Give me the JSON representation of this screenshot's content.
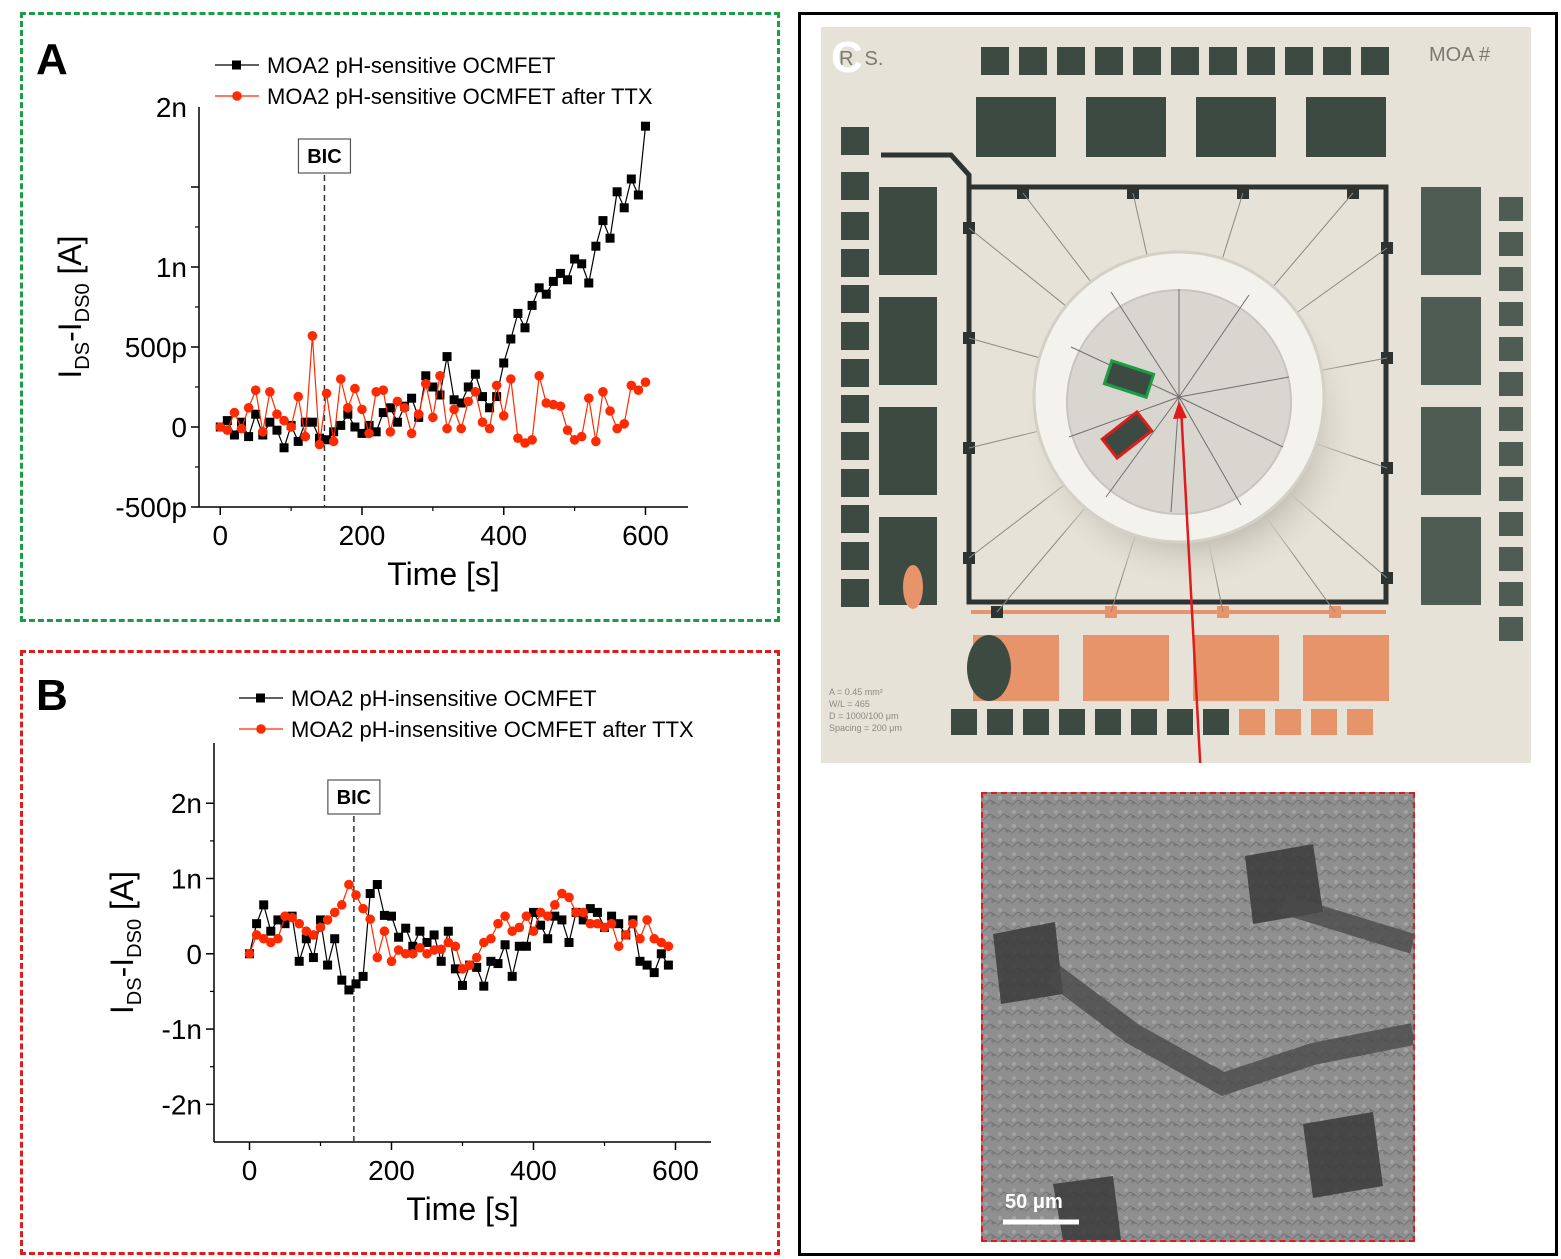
{
  "panels": {
    "A": {
      "letter": "A"
    },
    "B": {
      "letter": "B"
    },
    "C": {
      "letter": "C"
    }
  },
  "colors": {
    "series_black": "#000000",
    "series_red": "#ff2a00",
    "panelA_border": "#1a9e45",
    "panelB_border": "#e01b1b",
    "chip_bg": "#e6e2d8",
    "electrode_dark": "#3d4a42",
    "electrode_orange": "#e8946a"
  },
  "chart_data": [
    {
      "type": "line",
      "panel": "A",
      "xlabel": "Time [s]",
      "ylabel_main": "I",
      "ylabel_sub1": "DS",
      "ylabel_mid": "-I",
      "ylabel_sub2": "DS0",
      "ylabel_tail": " [A]",
      "xlim": [
        -30,
        660
      ],
      "ylim": [
        -500,
        2000
      ],
      "xticks": [
        0,
        200,
        400,
        600
      ],
      "xtick_labels": [
        "0",
        "200",
        "400",
        "600"
      ],
      "yticks": [
        -500,
        0,
        500,
        1000,
        1500
      ],
      "ytick_labels": [
        "-500p",
        "0",
        "500p",
        "1n",
        ""
      ],
      "ytop_label": "2n",
      "grid": false,
      "legend_position": "top",
      "annotation": {
        "label": "BIC",
        "x": 147
      },
      "series": [
        {
          "name": "MOA2 pH-sensitive OCMFET",
          "color": "#000000",
          "marker": "square",
          "x": [
            0,
            10,
            20,
            30,
            40,
            50,
            60,
            70,
            80,
            90,
            100,
            110,
            120,
            130,
            140,
            150,
            160,
            170,
            180,
            190,
            200,
            210,
            220,
            230,
            240,
            250,
            260,
            270,
            280,
            290,
            300,
            310,
            320,
            330,
            340,
            350,
            360,
            370,
            380,
            390,
            400,
            410,
            420,
            430,
            440,
            450,
            460,
            470,
            480,
            490,
            500,
            510,
            520,
            530,
            540,
            550,
            560,
            570,
            580,
            590,
            600
          ],
          "y": [
            0,
            40,
            -50,
            30,
            -60,
            80,
            -50,
            30,
            -20,
            -130,
            10,
            -90,
            30,
            30,
            -70,
            -80,
            -30,
            10,
            80,
            0,
            -40,
            10,
            -30,
            90,
            120,
            30,
            130,
            180,
            60,
            320,
            250,
            200,
            440,
            170,
            150,
            250,
            330,
            190,
            120,
            190,
            400,
            550,
            710,
            620,
            760,
            870,
            830,
            910,
            960,
            920,
            1050,
            1020,
            900,
            1130,
            1290,
            1180,
            1470,
            1370,
            1550,
            1450,
            1880
          ]
        },
        {
          "name": "MOA2 pH-sensitive OCMFET after TTX",
          "color": "#ff2a00",
          "marker": "circle",
          "x": [
            0,
            10,
            20,
            30,
            40,
            50,
            60,
            70,
            80,
            90,
            100,
            110,
            120,
            130,
            140,
            150,
            160,
            170,
            180,
            190,
            200,
            210,
            220,
            230,
            240,
            250,
            260,
            270,
            280,
            290,
            300,
            310,
            320,
            330,
            340,
            350,
            360,
            370,
            380,
            390,
            400,
            410,
            420,
            430,
            440,
            450,
            460,
            470,
            480,
            490,
            500,
            510,
            520,
            530,
            540,
            550,
            560,
            570,
            580,
            590,
            600
          ],
          "y": [
            0,
            -20,
            90,
            -10,
            120,
            230,
            -30,
            220,
            80,
            40,
            0,
            190,
            -60,
            570,
            -110,
            210,
            -90,
            300,
            120,
            240,
            110,
            -40,
            220,
            230,
            -30,
            160,
            120,
            -40,
            80,
            270,
            60,
            320,
            -10,
            110,
            -10,
            160,
            220,
            30,
            -10,
            260,
            70,
            300,
            -70,
            -100,
            -80,
            320,
            150,
            140,
            130,
            -20,
            -80,
            -60,
            180,
            -90,
            220,
            100,
            -10,
            20,
            260,
            230,
            280
          ]
        }
      ]
    },
    {
      "type": "line",
      "panel": "B",
      "xlabel": "Time [s]",
      "ylabel_main": "I",
      "ylabel_sub1": "DS",
      "ylabel_mid": "-I",
      "ylabel_sub2": "DS0",
      "ylabel_tail": " [A]",
      "xlim": [
        -50,
        650
      ],
      "ylim": [
        -2500,
        2800
      ],
      "xticks": [
        0,
        200,
        400,
        600
      ],
      "xtick_labels": [
        "0",
        "200",
        "400",
        "600"
      ],
      "yticks": [
        -2000,
        -1000,
        0,
        1000,
        2000
      ],
      "ytick_labels": [
        "-2n",
        "-1n",
        "0",
        "1n",
        "2n"
      ],
      "grid": false,
      "legend_position": "top",
      "annotation": {
        "label": "BIC",
        "x": 147
      },
      "series": [
        {
          "name": "MOA2 pH-insensitive OCMFET",
          "color": "#000000",
          "marker": "square",
          "x": [
            0,
            10,
            20,
            30,
            40,
            50,
            60,
            70,
            80,
            90,
            100,
            110,
            120,
            130,
            140,
            150,
            160,
            170,
            180,
            190,
            200,
            210,
            220,
            230,
            240,
            250,
            260,
            270,
            280,
            290,
            300,
            310,
            320,
            330,
            340,
            350,
            360,
            370,
            380,
            390,
            400,
            410,
            420,
            430,
            440,
            450,
            460,
            470,
            480,
            490,
            500,
            510,
            520,
            530,
            540,
            550,
            560,
            570,
            580,
            590
          ],
          "y": [
            0,
            400,
            650,
            300,
            450,
            400,
            500,
            -100,
            200,
            -50,
            450,
            -150,
            200,
            -350,
            -480,
            -400,
            -300,
            800,
            920,
            510,
            500,
            220,
            340,
            100,
            300,
            150,
            250,
            -100,
            300,
            -200,
            -420,
            -150,
            -180,
            -430,
            -100,
            -130,
            120,
            -300,
            100,
            100,
            550,
            380,
            200,
            500,
            450,
            150,
            550,
            450,
            600,
            550,
            350,
            500,
            400,
            250,
            450,
            -100,
            -150,
            -250,
            0,
            -150
          ]
        },
        {
          "name": "MOA2 pH-insensitive OCMFET after TTX",
          "color": "#ff2a00",
          "marker": "circle",
          "x": [
            0,
            10,
            20,
            30,
            40,
            50,
            60,
            70,
            80,
            90,
            100,
            110,
            120,
            130,
            140,
            150,
            160,
            170,
            180,
            190,
            200,
            210,
            220,
            230,
            240,
            250,
            260,
            270,
            280,
            290,
            300,
            310,
            320,
            330,
            340,
            350,
            360,
            370,
            380,
            390,
            400,
            410,
            420,
            430,
            440,
            450,
            460,
            470,
            480,
            490,
            500,
            510,
            520,
            530,
            540,
            550,
            560,
            570,
            580,
            590
          ],
          "y": [
            0,
            250,
            200,
            150,
            200,
            500,
            480,
            400,
            300,
            250,
            350,
            450,
            550,
            650,
            920,
            780,
            600,
            460,
            -50,
            300,
            -100,
            50,
            0,
            0,
            80,
            0,
            50,
            60,
            150,
            100,
            -200,
            -150,
            -50,
            150,
            200,
            400,
            500,
            300,
            350,
            500,
            300,
            550,
            500,
            650,
            800,
            750,
            550,
            550,
            400,
            400,
            350,
            400,
            100,
            250,
            400,
            200,
            450,
            200,
            150,
            100
          ]
        }
      ]
    }
  ],
  "photo": {
    "chip_label_left": "R. S.",
    "chip_label_right": "MOA #",
    "specs": [
      "A = 0.45 mm²",
      "W/L = 465",
      "D = 1000/100 μm",
      "Spacing = 200 μm"
    ],
    "scale_bar": "50 μm"
  }
}
